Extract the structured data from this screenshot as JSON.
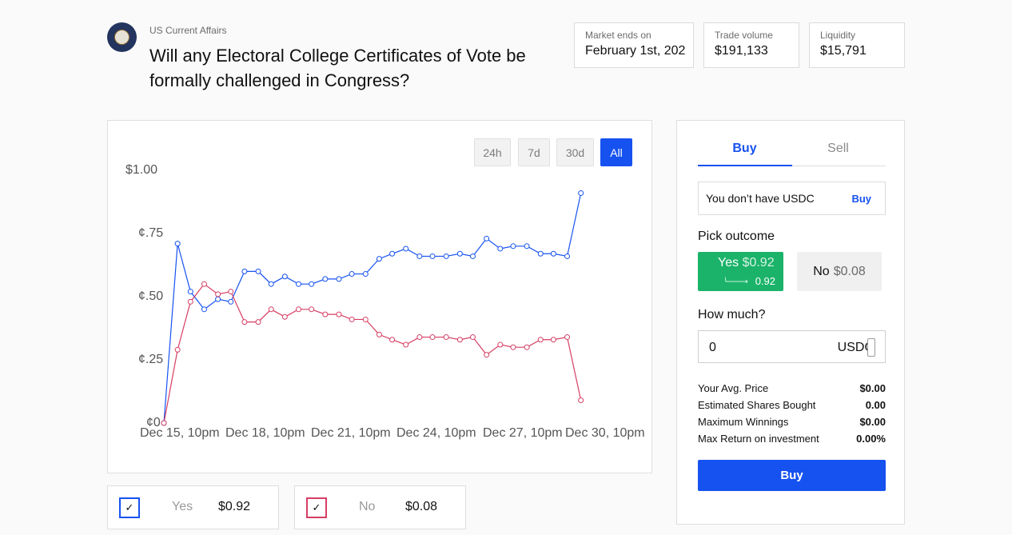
{
  "market": {
    "category": "US Current Affairs",
    "title": "Will any Electoral College Certificates of Vote be formally challenged in Congress?",
    "stats": [
      {
        "label": "Market ends on",
        "value": "February 1st, 202"
      },
      {
        "label": "Trade volume",
        "value": "$191,133"
      },
      {
        "label": "Liquidity",
        "value": "$15,791"
      }
    ]
  },
  "ranges": [
    "24h",
    "7d",
    "30d",
    "All"
  ],
  "active_range": "All",
  "legend": [
    {
      "name": "Yes",
      "price": "$0.92",
      "color": "#1652f0"
    },
    {
      "name": "No",
      "price": "$0.08",
      "color": "#d63e63"
    }
  ],
  "chart_data": {
    "type": "line",
    "x_ticks": [
      "Dec 15, 10pm",
      "Dec 18, 10pm",
      "Dec 21, 10pm",
      "Dec 24, 10pm",
      "Dec 27, 10pm",
      "Dec 30, 10pm"
    ],
    "y_ticks": [
      "$1.00",
      "¢.75",
      "¢.50",
      "¢.25",
      "¢0"
    ],
    "ylim": [
      0,
      1
    ],
    "x_range": [
      0,
      5.5
    ],
    "series": [
      {
        "name": "Yes",
        "color": "#1652f0",
        "x": [
          0,
          0.17,
          0.33,
          0.5,
          0.67,
          0.83,
          1.0,
          1.17,
          1.33,
          1.5,
          1.67,
          1.83,
          2.0,
          2.17,
          2.33,
          2.5,
          2.67,
          2.83,
          3.0,
          3.17,
          3.33,
          3.5,
          3.67,
          3.83,
          4.0,
          4.17,
          4.33,
          4.5,
          4.67,
          4.83,
          5.0,
          5.17,
          5.33,
          5.5
        ],
        "values": [
          0.0,
          0.71,
          0.52,
          0.45,
          0.49,
          0.48,
          0.6,
          0.6,
          0.55,
          0.58,
          0.55,
          0.55,
          0.57,
          0.57,
          0.59,
          0.59,
          0.65,
          0.67,
          0.69,
          0.66,
          0.66,
          0.66,
          0.67,
          0.66,
          0.73,
          0.69,
          0.7,
          0.7,
          0.67,
          0.67,
          0.66,
          0.91,
          null,
          null
        ]
      },
      {
        "name": "No",
        "color": "#d63e63",
        "x": [
          0,
          0.17,
          0.33,
          0.5,
          0.67,
          0.83,
          1.0,
          1.17,
          1.33,
          1.5,
          1.67,
          1.83,
          2.0,
          2.17,
          2.33,
          2.5,
          2.67,
          2.83,
          3.0,
          3.17,
          3.33,
          3.5,
          3.67,
          3.83,
          4.0,
          4.17,
          4.33,
          4.5,
          4.67,
          4.83,
          5.0,
          5.17,
          5.33,
          5.5
        ],
        "values": [
          0.0,
          0.29,
          0.48,
          0.55,
          0.51,
          0.52,
          0.4,
          0.4,
          0.45,
          0.42,
          0.45,
          0.45,
          0.43,
          0.43,
          0.41,
          0.41,
          0.35,
          0.33,
          0.31,
          0.34,
          0.34,
          0.34,
          0.33,
          0.34,
          0.27,
          0.31,
          0.3,
          0.3,
          0.33,
          0.33,
          0.34,
          0.09,
          null,
          null
        ]
      }
    ]
  },
  "trade": {
    "tabs": [
      "Buy",
      "Sell"
    ],
    "active_tab": "Buy",
    "notice": "You don’t have USDC",
    "notice_link": "Buy",
    "pick_label": "Pick outcome",
    "yes_name": "Yes",
    "yes_price": "$0.92",
    "yes_sub": "0.92",
    "no_name": "No",
    "no_price": "$0.08",
    "amount_label": "How much?",
    "amount_value": "0",
    "amount_unit": "USDC",
    "rows": [
      {
        "label": "Your Avg. Price",
        "value": "$0.00"
      },
      {
        "label": "Estimated Shares Bought",
        "value": "0.00"
      },
      {
        "label": "Maximum Winnings",
        "value": "$0.00"
      },
      {
        "label": "Max Return on investment",
        "value": "0.00%"
      }
    ],
    "buy_label": "Buy"
  }
}
